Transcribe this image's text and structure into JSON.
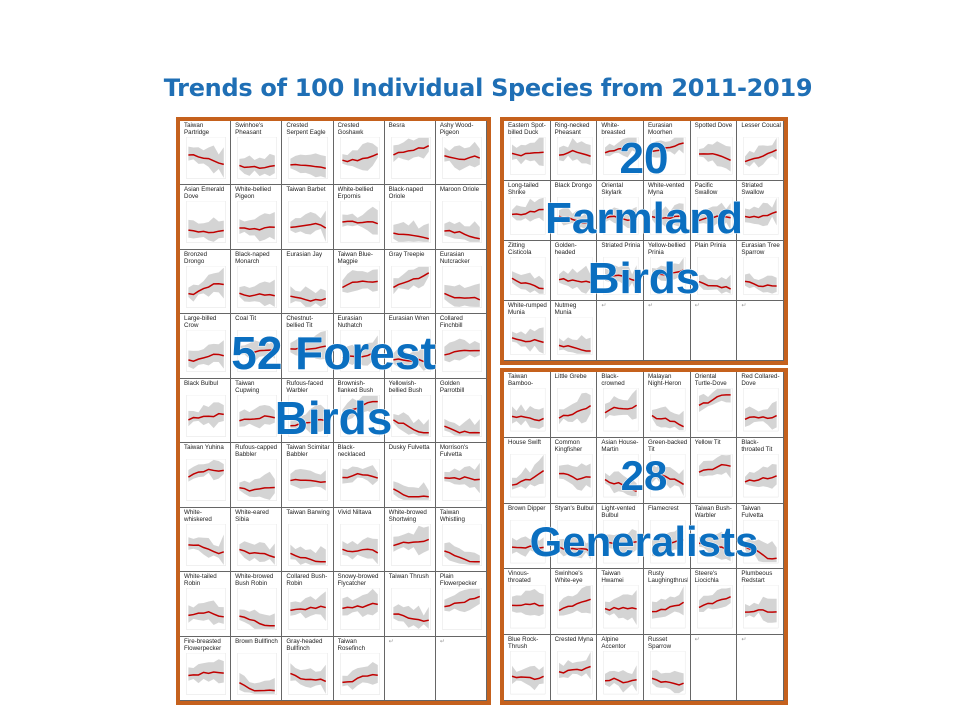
{
  "title": "Trends of 100 Individual Species from 2011-2019",
  "overlays": {
    "forest": [
      "52 Forest",
      "Birds"
    ],
    "farmland": [
      "20",
      "Farmland",
      "Birds"
    ],
    "generalists": [
      "28",
      "Generalists"
    ]
  },
  "colors": {
    "title": "#1f6fb5",
    "overlay": "#0b6fc0",
    "border": "#c5611d",
    "trend_line": "#c00000",
    "confidence_band": "#d4d4d4"
  },
  "forest_species": [
    "Taiwan Partridge",
    "Swinhoe's Pheasant",
    "Crested Serpent Eagle",
    "Crested Goshawk",
    "Besra",
    "Ashy Wood-Pigeon",
    "Asian Emerald Dove",
    "White-bellied Pigeon",
    "Taiwan Barbet",
    "White-bellied Erpornis",
    "Black-naped Oriole",
    "Maroon Oriole",
    "Bronzed Drongo",
    "Black-naped Monarch",
    "Eurasian Jay",
    "Taiwan Blue-Magpie",
    "Gray Treepie",
    "Eurasian Nutcracker",
    "Large-billed Crow",
    "Coal Tit",
    "Chestnut-bellied Tit",
    "Eurasian Nuthatch",
    "Eurasian Wren",
    "Collared Finchbill",
    "Black Bulbul",
    "Taiwan Cupwing",
    "Rufous-faced Warbler",
    "Brownish-flanked Bush Warbler",
    "Yellowish-bellied Bush Warbler",
    "Golden Parrotbill",
    "Taiwan Yuhina",
    "Rufous-capped Babbler",
    "Taiwan Scimitar Babbler",
    "Black-necklaced Scimitar Babbler",
    "Dusky Fulvetta",
    "Morrison's Fulvetta",
    "White-whiskered Laughingthrush",
    "White-eared Sibia",
    "Taiwan Barwing",
    "Vivid Niltava",
    "White-browed Shortwing",
    "Taiwan Whistling Thrush",
    "White-tailed Robin",
    "White-browed Bush Robin",
    "Collared Bush-Robin",
    "Snowy-browed Flycatcher",
    "Taiwan Thrush",
    "Plain Flowerpecker",
    "Fire-breasted Flowerpecker",
    "Brown Bullfinch",
    "Gray-headed Bullfinch",
    "Taiwan Rosefinch"
  ],
  "farmland_species": [
    "Eastern Spot-billed Duck",
    "Ring-necked Pheasant",
    "White-breasted Waterhen",
    "Eurasian Moorhen",
    "Spotted Dove",
    "Lesser Coucal",
    "Long-tailed Shrike",
    "Black Drongo",
    "Oriental Skylark",
    "White-vented Myna",
    "Pacific Swallow",
    "Striated Swallow",
    "Zitting Cisticola",
    "Golden-headed Cisticola",
    "Striated Prinia",
    "Yellow-bellied Prinia",
    "Plain Prinia",
    "Eurasian Tree Sparrow",
    "White-rumped Munia",
    "Nutmeg Munia"
  ],
  "generalist_species": [
    "Taiwan Bamboo-Partridge",
    "Little Grebe",
    "Black-crowned Night-Heron",
    "Malayan Night-Heron",
    "Oriental Turtle-Dove",
    "Red Collared-Dove",
    "House Swift",
    "Common Kingfisher",
    "Asian House-Martin",
    "Green-backed Tit",
    "Yellow Tit",
    "Black-throated Tit",
    "Brown Dipper",
    "Styan's Bulbul",
    "Light-vented Bulbul",
    "Flamecrest",
    "Taiwan Bush-Warbler",
    "Taiwan Fulvetta",
    "Vinous-throated Parrotbill",
    "Swinhoe's White-eye",
    "Taiwan Hwamei",
    "Rusty Laughingthrush",
    "Steere's Liocichla",
    "Plumbeous Redstart",
    "Blue Rock-Thrush",
    "Crested Myna",
    "Alpine Accentor",
    "Russet Sparrow"
  ],
  "empty_cell_mark": "↵"
}
